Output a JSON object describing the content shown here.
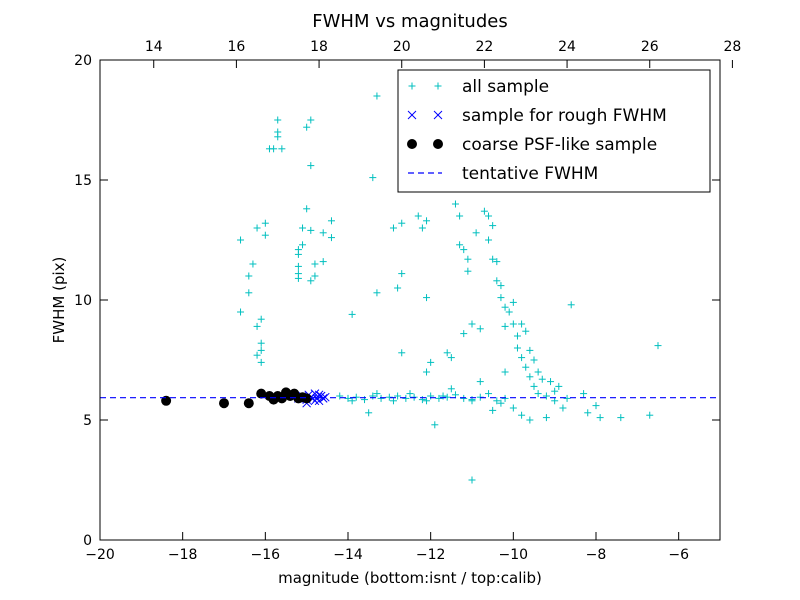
{
  "chart_data": {
    "type": "scatter",
    "title": "FWHM vs magnitudes",
    "xlabel": "magnitude (bottom:isnt / top:calib)",
    "ylabel": "FWHM (pix)",
    "xlim": [
      -20,
      -5
    ],
    "ylim": [
      0,
      20
    ],
    "x_ticks": [
      -20,
      -18,
      -16,
      -14,
      -12,
      -10,
      -8,
      -6
    ],
    "x_tick_labels": [
      "−20",
      "−18",
      "−16",
      "−14",
      "−12",
      "−10",
      "−8",
      "−6"
    ],
    "y_ticks": [
      0,
      5,
      10,
      15,
      20
    ],
    "y_tick_labels": [
      "0",
      "5",
      "10",
      "15",
      "20"
    ],
    "top_axis_offset": 32.7,
    "top_ticks": [
      14,
      16,
      18,
      20,
      22,
      24,
      26,
      28
    ],
    "top_tick_labels": [
      "14",
      "16",
      "18",
      "20",
      "22",
      "24",
      "26",
      "28"
    ],
    "legend_position": "top-right",
    "tentative_fwhm": 5.93,
    "series": [
      {
        "name": "all sample",
        "marker": "plus",
        "color": "#00bfbf",
        "points": [
          [
            -16.6,
            12.5
          ],
          [
            -16.6,
            9.5
          ],
          [
            -16.4,
            10.3
          ],
          [
            -16.4,
            11.0
          ],
          [
            -16.3,
            11.5
          ],
          [
            -16.2,
            13.0
          ],
          [
            -16.2,
            8.9
          ],
          [
            -16.1,
            8.2
          ],
          [
            -16.1,
            7.4
          ],
          [
            -16.2,
            7.7
          ],
          [
            -16.1,
            9.2
          ],
          [
            -16.1,
            7.9
          ],
          [
            -16.0,
            12.7
          ],
          [
            -16.0,
            13.2
          ],
          [
            -15.9,
            16.3
          ],
          [
            -15.8,
            16.3
          ],
          [
            -15.7,
            17.0
          ],
          [
            -15.7,
            16.8
          ],
          [
            -15.7,
            17.5
          ],
          [
            -15.6,
            16.3
          ],
          [
            -15.0,
            17.2
          ],
          [
            -14.9,
            17.5
          ],
          [
            -14.9,
            15.6
          ],
          [
            -14.9,
            12.9
          ],
          [
            -14.8,
            11.5
          ],
          [
            -14.8,
            11.0
          ],
          [
            -14.9,
            10.8
          ],
          [
            -15.0,
            13.8
          ],
          [
            -15.1,
            13.0
          ],
          [
            -15.2,
            11.9
          ],
          [
            -15.2,
            11.4
          ],
          [
            -15.2,
            11.1
          ],
          [
            -15.2,
            10.9
          ],
          [
            -15.2,
            12.1
          ],
          [
            -15.1,
            12.3
          ],
          [
            -14.6,
            12.8
          ],
          [
            -14.6,
            11.6
          ],
          [
            -14.4,
            13.3
          ],
          [
            -14.4,
            12.6
          ],
          [
            -13.9,
            9.4
          ],
          [
            -13.3,
            18.5
          ],
          [
            -13.4,
            15.1
          ],
          [
            -13.3,
            10.3
          ],
          [
            -12.9,
            13.0
          ],
          [
            -12.7,
            13.2
          ],
          [
            -12.7,
            11.1
          ],
          [
            -12.8,
            10.5
          ],
          [
            -12.7,
            7.8
          ],
          [
            -12.3,
            13.5
          ],
          [
            -12.2,
            13.0
          ],
          [
            -12.1,
            10.1
          ],
          [
            -12.1,
            13.3
          ],
          [
            -12.1,
            7.0
          ],
          [
            -12.0,
            7.4
          ],
          [
            -11.9,
            4.8
          ],
          [
            -11.6,
            7.8
          ],
          [
            -11.5,
            7.6
          ],
          [
            -11.4,
            14.0
          ],
          [
            -11.3,
            13.5
          ],
          [
            -11.3,
            12.3
          ],
          [
            -11.2,
            12.1
          ],
          [
            -11.2,
            8.6
          ],
          [
            -11.1,
            11.2
          ],
          [
            -11.1,
            11.7
          ],
          [
            -11.0,
            2.5
          ],
          [
            -11.0,
            9.0
          ],
          [
            -10.9,
            12.8
          ],
          [
            -10.8,
            8.8
          ],
          [
            -10.7,
            13.7
          ],
          [
            -10.6,
            13.5
          ],
          [
            -10.6,
            12.5
          ],
          [
            -10.5,
            13.1
          ],
          [
            -10.5,
            11.7
          ],
          [
            -10.4,
            11.6
          ],
          [
            -10.4,
            10.8
          ],
          [
            -10.3,
            10.6
          ],
          [
            -10.3,
            10.1
          ],
          [
            -10.2,
            9.7
          ],
          [
            -10.2,
            8.9
          ],
          [
            -10.1,
            9.5
          ],
          [
            -10.0,
            9.9
          ],
          [
            -10.0,
            9.0
          ],
          [
            -9.9,
            8.5
          ],
          [
            -9.9,
            8.0
          ],
          [
            -9.8,
            9.0
          ],
          [
            -9.8,
            7.6
          ],
          [
            -9.7,
            8.7
          ],
          [
            -9.7,
            7.2
          ],
          [
            -9.6,
            7.9
          ],
          [
            -9.6,
            6.8
          ],
          [
            -9.5,
            7.5
          ],
          [
            -9.5,
            6.4
          ],
          [
            -9.4,
            7.0
          ],
          [
            -9.4,
            6.1
          ],
          [
            -9.3,
            6.7
          ],
          [
            -9.2,
            6.0
          ],
          [
            -9.1,
            6.6
          ],
          [
            -9.0,
            5.8
          ],
          [
            -8.9,
            6.4
          ],
          [
            -8.8,
            5.5
          ],
          [
            -8.7,
            5.9
          ],
          [
            -8.6,
            9.8
          ],
          [
            -8.3,
            6.1
          ],
          [
            -8.2,
            5.3
          ],
          [
            -8.0,
            5.6
          ],
          [
            -7.9,
            5.1
          ],
          [
            -7.4,
            5.1
          ],
          [
            -6.7,
            5.2
          ],
          [
            -6.5,
            8.1
          ],
          [
            -9.8,
            5.2
          ],
          [
            -10.0,
            5.5
          ],
          [
            -10.5,
            5.4
          ],
          [
            -11.0,
            5.8
          ],
          [
            -11.5,
            6.3
          ],
          [
            -10.8,
            6.6
          ],
          [
            -10.2,
            7.0
          ],
          [
            -9.6,
            5.0
          ],
          [
            -9.2,
            5.1
          ],
          [
            -10.3,
            5.7
          ],
          [
            -9.0,
            6.2
          ],
          [
            -14.2,
            6.0
          ],
          [
            -14.0,
            5.9
          ],
          [
            -13.8,
            5.95
          ],
          [
            -13.6,
            5.85
          ],
          [
            -13.4,
            6.0
          ],
          [
            -13.2,
            5.9
          ],
          [
            -13.0,
            5.95
          ],
          [
            -12.8,
            6.0
          ],
          [
            -12.6,
            5.9
          ],
          [
            -12.4,
            5.95
          ],
          [
            -12.2,
            5.85
          ],
          [
            -12.0,
            6.0
          ],
          [
            -11.8,
            5.9
          ],
          [
            -11.6,
            5.95
          ],
          [
            -11.4,
            6.05
          ],
          [
            -11.2,
            5.9
          ],
          [
            -11.0,
            5.85
          ],
          [
            -10.8,
            5.95
          ],
          [
            -10.6,
            6.1
          ],
          [
            -10.4,
            5.8
          ],
          [
            -10.2,
            5.9
          ],
          [
            -13.9,
            5.8
          ],
          [
            -13.5,
            5.3
          ],
          [
            -13.3,
            6.1
          ],
          [
            -12.9,
            5.8
          ],
          [
            -12.5,
            6.1
          ],
          [
            -12.1,
            5.8
          ],
          [
            -11.7,
            6.0
          ]
        ]
      },
      {
        "name": "sample for rough FWHM",
        "marker": "x",
        "color": "#0000ff",
        "points": [
          [
            -15.2,
            5.9
          ],
          [
            -15.1,
            6.0
          ],
          [
            -15.0,
            5.85
          ],
          [
            -14.9,
            5.95
          ],
          [
            -14.8,
            6.1
          ],
          [
            -14.75,
            5.9
          ],
          [
            -14.7,
            5.8
          ],
          [
            -14.65,
            6.0
          ],
          [
            -14.6,
            5.9
          ],
          [
            -14.55,
            5.95
          ],
          [
            -14.8,
            5.8
          ],
          [
            -14.95,
            6.05
          ],
          [
            -14.85,
            5.9
          ],
          [
            -15.0,
            5.7
          ],
          [
            -14.7,
            6.05
          ]
        ]
      },
      {
        "name": "coarse PSF-like sample",
        "marker": "circle",
        "color": "#000000",
        "points": [
          [
            -18.4,
            5.8
          ],
          [
            -17.0,
            5.7
          ],
          [
            -16.4,
            5.7
          ],
          [
            -16.1,
            6.1
          ],
          [
            -15.9,
            6.0
          ],
          [
            -15.8,
            5.85
          ],
          [
            -15.7,
            6.0
          ],
          [
            -15.6,
            5.9
          ],
          [
            -15.5,
            6.15
          ],
          [
            -15.4,
            6.0
          ],
          [
            -15.3,
            6.1
          ],
          [
            -15.2,
            5.9
          ],
          [
            -15.1,
            5.95
          ],
          [
            -15.0,
            5.9
          ]
        ]
      },
      {
        "name": "tentative FWHM",
        "marker": "dashed-line",
        "color": "#0000ff"
      }
    ]
  }
}
